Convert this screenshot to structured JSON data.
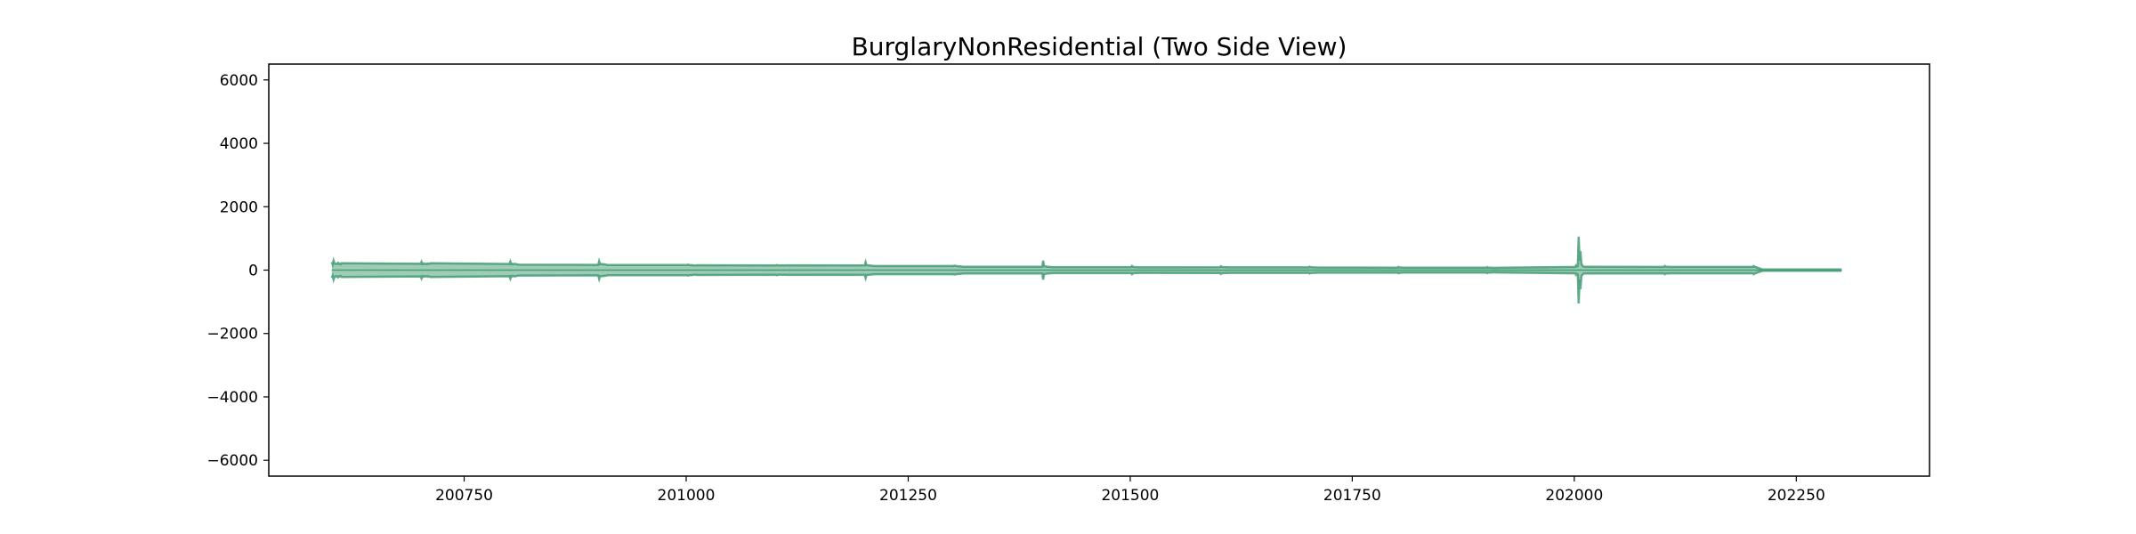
{
  "chart_data": {
    "type": "area",
    "title": "BurglaryNonResidential (Two Side View)",
    "xlabel": "",
    "ylabel": "",
    "xlim": [
      200530,
      202400
    ],
    "ylim": [
      -6500,
      6500
    ],
    "xticks": [
      200750,
      201000,
      201250,
      201500,
      201750,
      202000,
      202250
    ],
    "xtick_labels": [
      "200750",
      "201000",
      "201250",
      "201500",
      "201750",
      "202000",
      "202250"
    ],
    "yticks": [
      6000,
      4000,
      2000,
      0,
      -2000,
      -4000,
      -6000
    ],
    "ytick_labels": [
      "6000",
      "4000",
      "2000",
      "0",
      "−2000",
      "−4000",
      "−6000"
    ],
    "grid": false,
    "fill_color": "#3d9970",
    "line_color": "#3d9970",
    "series": [
      {
        "x": [
          200601,
          200602,
          200603,
          200604,
          200605,
          200606,
          200607,
          200608,
          200609,
          200610,
          200611,
          200612,
          200701,
          200702,
          200703,
          200704,
          200705,
          200706,
          200707,
          200708,
          200709,
          200710,
          200711,
          200712,
          200801,
          200802,
          200803,
          200804,
          200805,
          200806,
          200807,
          200808,
          200809,
          200810,
          200811,
          200812,
          200901,
          200902,
          200903,
          200904,
          200905,
          200906,
          200907,
          200908,
          200909,
          200910,
          200911,
          200912,
          201001,
          201002,
          201003,
          201004,
          201005,
          201006,
          201007,
          201008,
          201009,
          201010,
          201011,
          201012,
          201101,
          201102,
          201103,
          201104,
          201105,
          201106,
          201107,
          201108,
          201109,
          201110,
          201111,
          201112,
          201201,
          201202,
          201203,
          201204,
          201205,
          201206,
          201207,
          201208,
          201209,
          201210,
          201211,
          201212,
          201301,
          201302,
          201303,
          201304,
          201305,
          201306,
          201307,
          201308,
          201309,
          201310,
          201311,
          201312,
          201401,
          201402,
          201403,
          201404,
          201405,
          201406,
          201407,
          201408,
          201409,
          201410,
          201411,
          201412,
          201501,
          201502,
          201503,
          201504,
          201505,
          201506,
          201507,
          201508,
          201509,
          201510,
          201511,
          201512,
          201601,
          201602,
          201603,
          201604,
          201605,
          201606,
          201607,
          201608,
          201609,
          201610,
          201611,
          201612,
          201701,
          201702,
          201703,
          201704,
          201705,
          201706,
          201707,
          201708,
          201709,
          201710,
          201711,
          201712,
          201801,
          201802,
          201803,
          201804,
          201805,
          201806,
          201807,
          201808,
          201809,
          201810,
          201811,
          201812,
          201901,
          201902,
          201903,
          201904,
          201905,
          201906,
          201907,
          201908,
          201909,
          201910,
          201911,
          201912,
          202001,
          202002,
          202003,
          202004,
          202005,
          202006,
          202007,
          202008,
          202009,
          202010,
          202011,
          202012,
          202101,
          202102,
          202103,
          202104,
          202105,
          202106,
          202107,
          202108,
          202109,
          202110,
          202111,
          202112,
          202201,
          202202,
          202203,
          202204,
          202205,
          202206,
          202207,
          202208,
          202209,
          202210,
          202211,
          202212,
          202301
        ],
        "y": [
          250,
          180,
          300,
          220,
          200,
          190,
          210,
          230,
          195,
          205,
          185,
          215,
          200,
          260,
          190,
          210,
          195,
          205,
          190,
          200,
          210,
          195,
          205,
          215,
          195,
          270,
          190,
          200,
          185,
          195,
          200,
          190,
          185,
          180,
          175,
          170,
          165,
          280,
          190,
          195,
          185,
          190,
          180,
          185,
          175,
          170,
          165,
          160,
          160,
          175,
          165,
          160,
          155,
          160,
          150,
          155,
          150,
          145,
          150,
          155,
          150,
          160,
          155,
          150,
          145,
          150,
          148,
          152,
          150,
          148,
          150,
          152,
          150,
          250,
          160,
          155,
          150,
          148,
          145,
          140,
          138,
          135,
          132,
          130,
          130,
          140,
          132,
          128,
          125,
          122,
          120,
          118,
          115,
          112,
          110,
          108,
          105,
          300,
          130,
          120,
          115,
          110,
          108,
          105,
          102,
          100,
          98,
          96,
          95,
          130,
          100,
          98,
          96,
          95,
          93,
          92,
          90,
          88,
          87,
          86,
          90,
          120,
          100,
          98,
          96,
          95,
          94,
          93,
          92,
          90,
          89,
          88,
          88,
          110,
          92,
          90,
          88,
          87,
          86,
          85,
          84,
          83,
          82,
          81,
          80,
          100,
          85,
          83,
          82,
          81,
          80,
          79,
          78,
          77,
          76,
          75,
          75,
          95,
          80,
          78,
          76,
          75,
          74,
          73,
          72,
          71,
          70,
          72,
          100,
          150,
          120,
          130,
          1050,
          300,
          600,
          200,
          150,
          120,
          110,
          105,
          100,
          130,
          110,
          108,
          105,
          103,
          102,
          101,
          100,
          100,
          98,
          100,
          100,
          130,
          110,
          100,
          90,
          80,
          70,
          60,
          50,
          40,
          30,
          20,
          20
        ]
      }
    ]
  }
}
